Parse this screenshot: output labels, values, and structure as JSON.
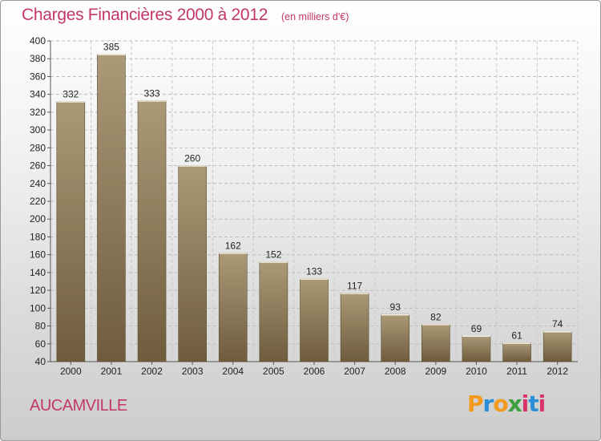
{
  "header": {
    "title": "Charges Financières 2000 à 2012",
    "subtitle": "(en milliers d'€)"
  },
  "footer": {
    "commune": "AUCAMVILLE",
    "brand_letters": [
      "P",
      "r",
      "o",
      "x",
      "i",
      "t",
      "i"
    ],
    "brand_colors": [
      "#f39a1e",
      "#2a8fd8",
      "#f39a1e",
      "#3c9e3c",
      "#d8336b",
      "#2a8fd8",
      "#d8336b"
    ]
  },
  "colors": {
    "title": "#c2366c",
    "bar_light": "#ab9a78",
    "bar_dark": "#6e5c3c"
  },
  "chart_data": {
    "type": "bar",
    "categories": [
      "2000",
      "2001",
      "2002",
      "2003",
      "2004",
      "2005",
      "2006",
      "2007",
      "2008",
      "2009",
      "2010",
      "2011",
      "2012"
    ],
    "values": [
      332,
      385,
      333,
      260,
      162,
      152,
      133,
      117,
      93,
      82,
      69,
      61,
      74
    ],
    "ylim": [
      40,
      400
    ],
    "yticks": [
      40,
      60,
      80,
      100,
      120,
      140,
      160,
      180,
      200,
      220,
      240,
      260,
      280,
      300,
      320,
      340,
      360,
      380,
      400
    ],
    "grid": true
  }
}
